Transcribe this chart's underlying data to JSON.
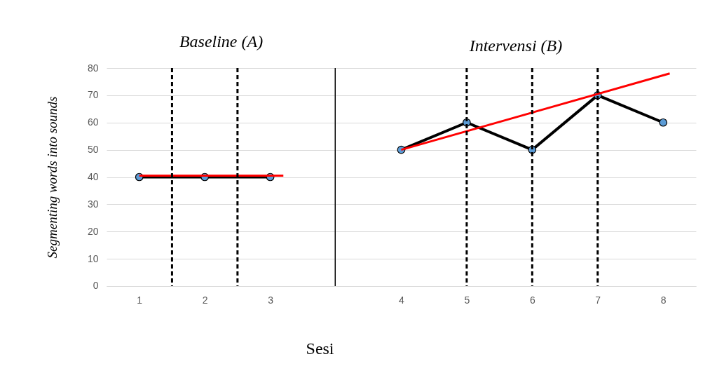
{
  "chart_data": [
    {
      "type": "line",
      "title": "Baseline (A)",
      "xlabel": "Sesi",
      "ylabel": "Segmenting words into sounds",
      "xlim": [
        0.5,
        4
      ],
      "xticks": [
        1,
        2,
        3
      ],
      "ylim": [
        0,
        80
      ],
      "yticks": [
        0,
        10,
        20,
        30,
        40,
        50,
        60,
        70,
        80
      ],
      "grid": "y",
      "marker": "circle",
      "series": [
        {
          "color": "#000000",
          "x": [
            1,
            2,
            3
          ],
          "values": [
            40,
            40,
            40
          ]
        },
        {
          "type": "line",
          "color": "#ff0000",
          "marker": "none",
          "x": [
            1,
            3.2
          ],
          "values": [
            40.5,
            40.5
          ]
        }
      ],
      "ref_lines": [
        {
          "axis": "x",
          "value": 1.5,
          "color": "#000000",
          "line_style": "dashed"
        },
        {
          "axis": "x",
          "value": 2.5,
          "color": "#000000",
          "line_style": "dashed"
        },
        {
          "axis": "x",
          "value": 4,
          "color": "#000000",
          "line_style": "solid"
        }
      ]
    },
    {
      "type": "line",
      "title": "Intervensi (B)",
      "tick_labels": "x",
      "xlim": [
        3,
        8.5
      ],
      "xticks": [
        4,
        5,
        6,
        7,
        8
      ],
      "ylim": [
        0,
        80
      ],
      "yticks": [
        0,
        10,
        20,
        30,
        40,
        50,
        60,
        70,
        80
      ],
      "grid": "y",
      "marker": "circle",
      "series": [
        {
          "color": "#000000",
          "x": [
            4,
            5,
            6,
            7,
            8
          ],
          "values": [
            50,
            60,
            50,
            70,
            60
          ]
        },
        {
          "type": "line",
          "color": "#ff0000",
          "marker": "none",
          "x": [
            4,
            8.1
          ],
          "values": [
            50,
            78
          ]
        }
      ],
      "ref_lines": [
        {
          "axis": "x",
          "value": 5,
          "color": "#000000",
          "line_style": "dashed"
        },
        {
          "axis": "x",
          "value": 6,
          "color": "#000000",
          "line_style": "dashed"
        },
        {
          "axis": "x",
          "value": 7,
          "color": "#000000",
          "line_style": "dashed"
        }
      ]
    }
  ]
}
